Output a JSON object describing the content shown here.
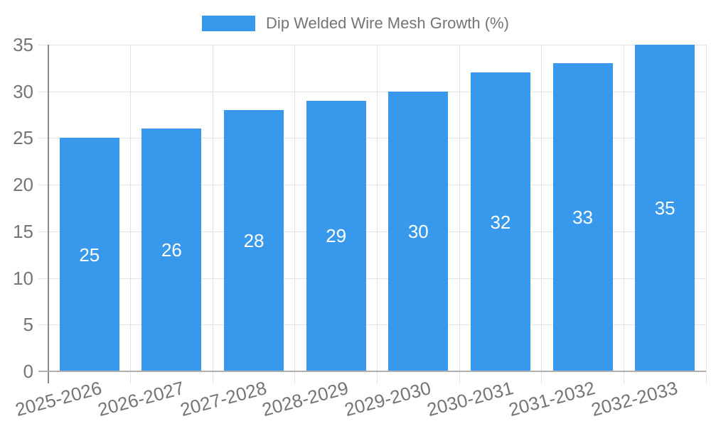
{
  "chart_data": {
    "type": "bar",
    "title": "",
    "categories": [
      "2025-2026",
      "2026-2027",
      "2027-2028",
      "2028-2029",
      "2029-2030",
      "2030-2031",
      "2031-2032",
      "2032-2033"
    ],
    "series": [
      {
        "name": "Dip Welded Wire Mesh Growth (%)",
        "values": [
          25,
          26,
          28,
          29,
          30,
          32,
          33,
          35
        ]
      }
    ],
    "value_labels": [
      "25",
      "26",
      "28",
      "29",
      "30",
      "32",
      "33",
      "35"
    ],
    "yticks": [
      "0",
      "5",
      "10",
      "15",
      "20",
      "25",
      "30",
      "35"
    ],
    "ylim": [
      0,
      35
    ],
    "grid": true,
    "legend_position": "top",
    "value_label_position": "inside-center",
    "colors": {
      "bar": "#3899ec",
      "value_label": "#ffffff",
      "tick_text": "#757575",
      "grid": "#e3e3e3",
      "axis_line": "#8a8a8a",
      "baseline": "#b0b0b0",
      "background": "#ffffff"
    }
  }
}
